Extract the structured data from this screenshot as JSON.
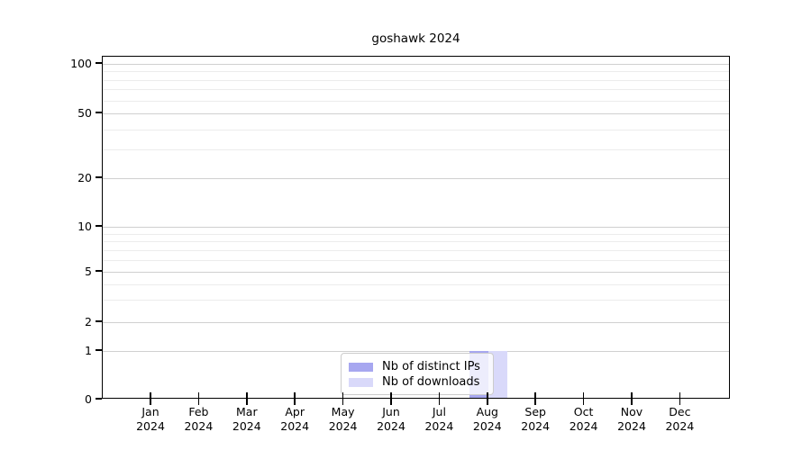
{
  "chart_data": {
    "type": "bar",
    "title": "goshawk 2024",
    "year": "2024",
    "categories": [
      "Jan",
      "Feb",
      "Mar",
      "Apr",
      "May",
      "Jun",
      "Jul",
      "Aug",
      "Sep",
      "Oct",
      "Nov",
      "Dec"
    ],
    "series": [
      {
        "name": "Nb of distinct IPs",
        "color": "#a7a7f0",
        "values": [
          0,
          0,
          0,
          0,
          0,
          0,
          0,
          1,
          0,
          0,
          0,
          0
        ]
      },
      {
        "name": "Nb of downloads",
        "color": "#d9d9fa",
        "values": [
          0,
          0,
          0,
          0,
          0,
          0,
          0,
          1,
          0,
          0,
          0,
          0
        ]
      }
    ],
    "y_ticks": [
      100,
      50,
      20,
      10,
      5,
      2,
      1,
      0
    ],
    "y_scale": "symlog",
    "ylim": [
      0,
      107
    ],
    "xlabel": "",
    "ylabel": "",
    "grid": "horizontal",
    "legend_position": "bottom-center"
  },
  "colors": {
    "axis": "#000000",
    "grid_major": "#d0d0d0",
    "grid_minor": "#ececec",
    "background": "#ffffff"
  }
}
